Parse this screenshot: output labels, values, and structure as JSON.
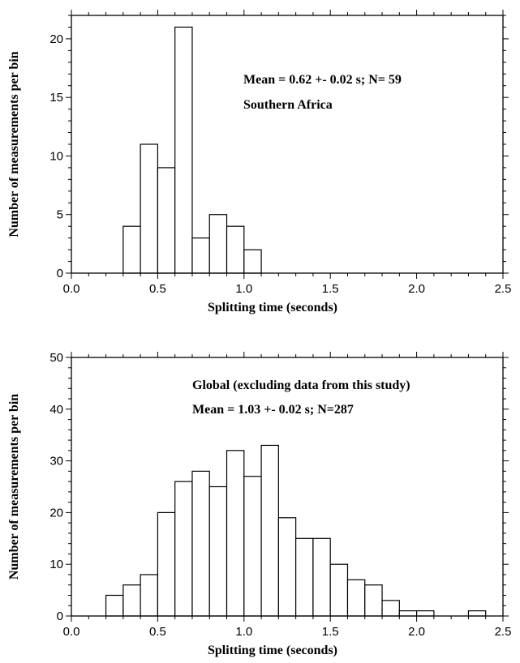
{
  "chart_data": [
    {
      "type": "bar",
      "xlabel": "Splitting time (seconds)",
      "ylabel": "Number of measurements per bin",
      "xlim": [
        0.0,
        2.5
      ],
      "ylim": [
        0,
        22
      ],
      "x_ticks": [
        "0.0",
        "0.5",
        "1.0",
        "1.5",
        "2.0",
        "2.5"
      ],
      "y_ticks": [
        "0",
        "5",
        "10",
        "15",
        "20"
      ],
      "bin_width": 0.1,
      "bins": [
        {
          "start": 0.3,
          "value": 4
        },
        {
          "start": 0.4,
          "value": 11
        },
        {
          "start": 0.5,
          "value": 9
        },
        {
          "start": 0.6,
          "value": 21
        },
        {
          "start": 0.7,
          "value": 3
        },
        {
          "start": 0.8,
          "value": 5
        },
        {
          "start": 0.9,
          "value": 4
        },
        {
          "start": 1.0,
          "value": 2
        }
      ],
      "annotations": [
        "Mean = 0.62 +- 0.02 s; N= 59",
        "Southern Africa"
      ]
    },
    {
      "type": "bar",
      "xlabel": "Splitting time (seconds)",
      "ylabel": "Number of measurements per bin",
      "xlim": [
        0.0,
        2.5
      ],
      "ylim": [
        0,
        50
      ],
      "x_ticks": [
        "0.0",
        "0.5",
        "1.0",
        "1.5",
        "2.0",
        "2.5"
      ],
      "y_ticks": [
        "0",
        "10",
        "20",
        "30",
        "40",
        "50"
      ],
      "bin_width": 0.1,
      "bins": [
        {
          "start": 0.2,
          "value": 4
        },
        {
          "start": 0.3,
          "value": 6
        },
        {
          "start": 0.4,
          "value": 8
        },
        {
          "start": 0.5,
          "value": 20
        },
        {
          "start": 0.6,
          "value": 26
        },
        {
          "start": 0.7,
          "value": 28
        },
        {
          "start": 0.8,
          "value": 25
        },
        {
          "start": 0.9,
          "value": 32
        },
        {
          "start": 1.0,
          "value": 27
        },
        {
          "start": 1.1,
          "value": 33
        },
        {
          "start": 1.2,
          "value": 19
        },
        {
          "start": 1.3,
          "value": 15
        },
        {
          "start": 1.4,
          "value": 15
        },
        {
          "start": 1.5,
          "value": 10
        },
        {
          "start": 1.6,
          "value": 7
        },
        {
          "start": 1.7,
          "value": 6
        },
        {
          "start": 1.8,
          "value": 3
        },
        {
          "start": 1.9,
          "value": 1
        },
        {
          "start": 2.0,
          "value": 1
        },
        {
          "start": 2.3,
          "value": 1
        }
      ],
      "annotations": [
        "Global (excluding data from this study)",
        "Mean = 1.03 +- 0.02 s; N=287"
      ]
    }
  ]
}
